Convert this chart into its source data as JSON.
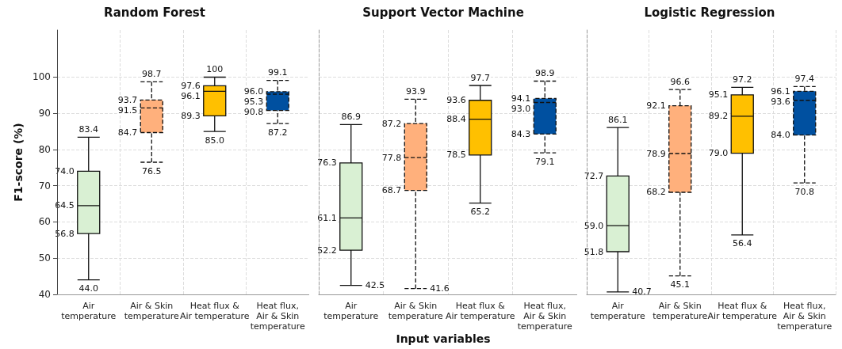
{
  "chart_data": [
    {
      "type": "box",
      "title": "Random Forest",
      "ylabel": "F1-score (%)",
      "categories": [
        "Air\ntemperature",
        "Air & Skin\ntemperature",
        "Heat flux &\nAir temperature",
        "Heat flux,\nAir & Skin\ntemperature"
      ],
      "ylim": [
        40,
        113
      ],
      "yticks": [
        40,
        50,
        60,
        70,
        80,
        90,
        100
      ],
      "grid": true,
      "series": [
        {
          "color": "#d9f0d3",
          "line_style": "solid",
          "boxes": [
            {
              "low": 44.0,
              "q1": 56.8,
              "median": 64.5,
              "q3": 74.0,
              "high": 83.4
            },
            null,
            null,
            null
          ]
        },
        {
          "color": "#ffb07c",
          "line_style": "dashed",
          "boxes": [
            null,
            {
              "low": 76.5,
              "q1": 84.7,
              "median": 91.5,
              "q3": 93.7,
              "high": 98.7
            },
            null,
            null
          ]
        },
        {
          "color": "#ffc000",
          "line_style": "solid",
          "boxes": [
            null,
            null,
            {
              "low": 85.0,
              "q1": 89.3,
              "median": 96.1,
              "q3": 97.6,
              "high": 100
            },
            null
          ]
        },
        {
          "color": "#0050a0",
          "line_style": "dashed",
          "boxes": [
            null,
            null,
            null,
            {
              "low": 87.2,
              "q1": 90.8,
              "median": 95.3,
              "q3": 96.0,
              "high": 99.1
            }
          ]
        }
      ],
      "annotations": [
        {
          "text": "83.4",
          "x": "Air\ntemperature",
          "y": 83.4
        },
        {
          "text": "44.0",
          "x": "Air\ntemperature",
          "y": 44.0
        },
        {
          "text": "56.8",
          "x": "Air\ntemperature",
          "y": 56.8
        },
        {
          "text": "64.5",
          "x": "Air\ntemperature",
          "y": 64.5
        },
        {
          "text": "74.0",
          "x": "Air\ntemperature",
          "y": 74.0
        },
        {
          "text": "98.7",
          "x": "Air & Skin\ntemperature",
          "y": 98.7
        },
        {
          "text": "76.5",
          "x": "Air & Skin\ntemperature",
          "y": 76.5
        },
        {
          "text": "84.7",
          "x": "Air & Skin\ntemperature",
          "y": 84.7
        },
        {
          "text": "91.5",
          "x": "Air & Skin\ntemperature",
          "y": 91.5
        },
        {
          "text": "93.7",
          "x": "Air & Skin\ntemperature",
          "y": 93.7
        },
        {
          "text": "100",
          "x": "Heat flux &\nAir temperature",
          "y": 100
        },
        {
          "text": "85.0",
          "x": "Heat flux &\nAir temperature",
          "y": 85.0
        },
        {
          "text": "89.3",
          "x": "Heat flux &\nAir temperature",
          "y": 89.3
        },
        {
          "text": "96.1",
          "x": "Heat flux &\nAir temperature",
          "y": 96.1
        },
        {
          "text": "97.6",
          "x": "Heat flux &\nAir temperature",
          "y": 97.6
        },
        {
          "text": "99.1",
          "x": "Heat flux,\nAir & Skin\ntemperature",
          "y": 99.1
        },
        {
          "text": "87.2",
          "x": "Heat flux,\nAir & Skin\ntemperature",
          "y": 87.2
        },
        {
          "text": "90.8",
          "x": "Heat flux,\nAir & Skin\ntemperature",
          "y": 90.8
        },
        {
          "text": "95.3",
          "x": "Heat flux,\nAir & Skin\ntemperature",
          "y": 95.3
        },
        {
          "text": "96.0",
          "x": "Heat flux,\nAir & Skin\ntemperature",
          "y": 96.0
        }
      ]
    },
    {
      "type": "box",
      "title": "Support Vector Machine",
      "xlabel": "Input variables",
      "categories": [
        "Air\ntemperature",
        "Air & Skin\ntemperature",
        "Heat flux &\nAir temperature",
        "Heat flux,\nAir & Skin\ntemperature"
      ],
      "ylim": [
        40,
        113
      ],
      "yticks": [
        40,
        50,
        60,
        70,
        80,
        90,
        100
      ],
      "tick_labels": "x",
      "grid": true,
      "series": [
        {
          "color": "#d9f0d3",
          "line_style": "solid",
          "boxes": [
            {
              "low": 42.5,
              "q1": 52.2,
              "median": 61.1,
              "q3": 76.3,
              "high": 86.9
            },
            null,
            null,
            null
          ]
        },
        {
          "color": "#ffb07c",
          "line_style": "dashed",
          "boxes": [
            null,
            {
              "low": 41.6,
              "q1": 68.7,
              "median": 77.8,
              "q3": 87.2,
              "high": 93.9
            },
            null,
            null
          ]
        },
        {
          "color": "#ffc000",
          "line_style": "solid",
          "boxes": [
            null,
            null,
            {
              "low": 65.2,
              "q1": 78.5,
              "median": 88.4,
              "q3": 93.6,
              "high": 97.7
            },
            null
          ]
        },
        {
          "color": "#0050a0",
          "line_style": "dashed",
          "boxes": [
            null,
            null,
            null,
            {
              "low": 79.1,
              "q1": 84.3,
              "median": 93.0,
              "q3": 94.1,
              "high": 98.9
            }
          ]
        }
      ],
      "annotations": [
        {
          "text": "86.9",
          "x": "Air\ntemperature",
          "y": 86.9
        },
        {
          "text": "42.5",
          "x": "Air\ntemperature",
          "y": 42.5
        },
        {
          "text": "52.2",
          "x": "Air\ntemperature",
          "y": 52.2
        },
        {
          "text": "61.1",
          "x": "Air\ntemperature",
          "y": 61.1
        },
        {
          "text": "76.3",
          "x": "Air\ntemperature",
          "y": 76.3
        },
        {
          "text": "93.9",
          "x": "Air & Skin\ntemperature",
          "y": 93.9
        },
        {
          "text": "41.6",
          "x": "Air & Skin\ntemperature",
          "y": 41.6
        },
        {
          "text": "68.7",
          "x": "Air & Skin\ntemperature",
          "y": 68.7
        },
        {
          "text": "77.8",
          "x": "Air & Skin\ntemperature",
          "y": 77.8
        },
        {
          "text": "87.2",
          "x": "Air & Skin\ntemperature",
          "y": 87.2
        },
        {
          "text": "97.7",
          "x": "Heat flux &\nAir temperature",
          "y": 97.7
        },
        {
          "text": "65.2",
          "x": "Heat flux &\nAir temperature",
          "y": 65.2
        },
        {
          "text": "78.5",
          "x": "Heat flux &\nAir temperature",
          "y": 78.5
        },
        {
          "text": "88.4",
          "x": "Heat flux &\nAir temperature",
          "y": 88.4
        },
        {
          "text": "93.6",
          "x": "Heat flux &\nAir temperature",
          "y": 93.6
        },
        {
          "text": "98.9",
          "x": "Heat flux,\nAir & Skin\ntemperature",
          "y": 98.9
        },
        {
          "text": "79.1",
          "x": "Heat flux,\nAir & Skin\ntemperature",
          "y": 79.1
        },
        {
          "text": "84.3",
          "x": "Heat flux,\nAir & Skin\ntemperature",
          "y": 84.3
        },
        {
          "text": "93.0",
          "x": "Heat flux,\nAir & Skin\ntemperature",
          "y": 93.0
        },
        {
          "text": "94.1",
          "x": "Heat flux,\nAir & Skin\ntemperature",
          "y": 94.1
        }
      ]
    },
    {
      "type": "box",
      "title": "Logistic Regression",
      "categories": [
        "Air\ntemperature",
        "Air & Skin\ntemperature",
        "Heat flux &\nAir temperature",
        "Heat flux,\nAir & Skin\ntemperature"
      ],
      "ylim": [
        40,
        113
      ],
      "yticks": [
        40,
        50,
        60,
        70,
        80,
        90,
        100
      ],
      "tick_labels": "x",
      "grid": true,
      "series": [
        {
          "color": "#d9f0d3",
          "line_style": "solid",
          "boxes": [
            {
              "low": 40.7,
              "q1": 51.8,
              "median": 59.0,
              "q3": 72.7,
              "high": 86.1
            },
            null,
            null,
            null
          ]
        },
        {
          "color": "#ffb07c",
          "line_style": "dashed",
          "boxes": [
            null,
            {
              "low": 45.1,
              "q1": 68.2,
              "median": 78.9,
              "q3": 92.1,
              "high": 96.6
            },
            null,
            null
          ]
        },
        {
          "color": "#ffc000",
          "line_style": "solid",
          "boxes": [
            null,
            null,
            {
              "low": 56.4,
              "q1": 79.0,
              "median": 89.2,
              "q3": 95.1,
              "high": 97.2
            },
            null
          ]
        },
        {
          "color": "#0050a0",
          "line_style": "dashed",
          "boxes": [
            null,
            null,
            null,
            {
              "low": 70.8,
              "q1": 84.0,
              "median": 93.6,
              "q3": 96.1,
              "high": 97.4
            }
          ]
        }
      ],
      "annotations": [
        {
          "text": "86.1",
          "x": "Air\ntemperature",
          "y": 86.1
        },
        {
          "text": "40.7",
          "x": "Air\ntemperature",
          "y": 40.7
        },
        {
          "text": "51.8",
          "x": "Air\ntemperature",
          "y": 51.8
        },
        {
          "text": "59.0",
          "x": "Air\ntemperature",
          "y": 59.0
        },
        {
          "text": "72.7",
          "x": "Air\ntemperature",
          "y": 72.7
        },
        {
          "text": "96.6",
          "x": "Air & Skin\ntemperature",
          "y": 96.6
        },
        {
          "text": "45.1",
          "x": "Air & Skin\ntemperature",
          "y": 45.1
        },
        {
          "text": "68.2",
          "x": "Air & Skin\ntemperature",
          "y": 68.2
        },
        {
          "text": "78.9",
          "x": "Air & Skin\ntemperature",
          "y": 78.9
        },
        {
          "text": "92.1",
          "x": "Air & Skin\ntemperature",
          "y": 92.1
        },
        {
          "text": "97.2",
          "x": "Heat flux &\nAir temperature",
          "y": 97.2
        },
        {
          "text": "56.4",
          "x": "Heat flux &\nAir temperature",
          "y": 56.4
        },
        {
          "text": "79.0",
          "x": "Heat flux &\nAir temperature",
          "y": 79.0
        },
        {
          "text": "89.2",
          "x": "Heat flux &\nAir temperature",
          "y": 89.2
        },
        {
          "text": "95.1",
          "x": "Heat flux &\nAir temperature",
          "y": 95.1
        },
        {
          "text": "97.4",
          "x": "Heat flux,\nAir & Skin\ntemperature",
          "y": 97.4
        },
        {
          "text": "70.8",
          "x": "Heat flux,\nAir & Skin\ntemperature",
          "y": 70.8
        },
        {
          "text": "84.0",
          "x": "Heat flux,\nAir & Skin\ntemperature",
          "y": 84.0
        },
        {
          "text": "93.6",
          "x": "Heat flux,\nAir & Skin\ntemperature",
          "y": 93.6
        },
        {
          "text": "96.1",
          "x": "Heat flux,\nAir & Skin\ntemperature",
          "y": 96.1
        }
      ]
    }
  ]
}
